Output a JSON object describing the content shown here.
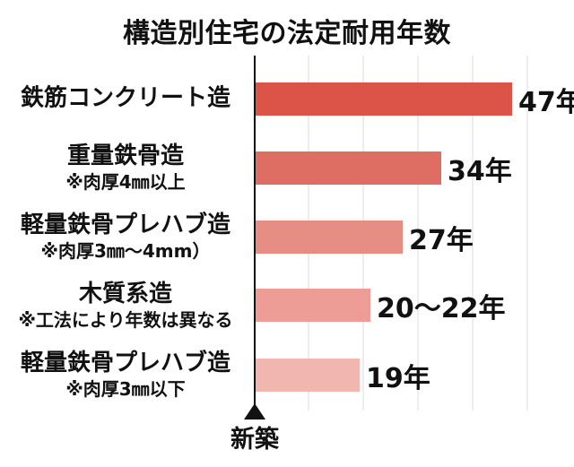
{
  "title": "構造別住宅の法定耐用年数",
  "chart_data": {
    "type": "bar",
    "orientation": "horizontal",
    "unit": "年",
    "baseline_label": "新築",
    "axis": {
      "origin_years": 0,
      "gridline_interval_years": 10,
      "visible_max_years": 50,
      "grid": true
    },
    "rows": [
      {
        "label": "鉄筋コンクリート造",
        "note": "",
        "value_label": "47年",
        "value_years": 47,
        "color": "#dc5348"
      },
      {
        "label": "重量鉄骨造",
        "note": "※肉厚4㎜以上",
        "value_label": "34年",
        "value_years": 34,
        "color": "#de6e64"
      },
      {
        "label": "軽量鉄骨プレハブ造",
        "note": "※肉厚3㎜〜4mm）",
        "value_label": "27年",
        "value_years": 27,
        "color": "#e68d84"
      },
      {
        "label": "木質系造",
        "note": "※工法により年数は異なる",
        "value_label": "20〜22年",
        "value_years": 21,
        "value_min_years": 20,
        "value_max_years": 22,
        "color": "#ed9d95"
      },
      {
        "label": "軽量鉄骨プレハブ造",
        "note": "※肉厚3㎜以下",
        "value_label": "19年",
        "value_years": 19,
        "color": "#f2b6b1"
      }
    ]
  }
}
